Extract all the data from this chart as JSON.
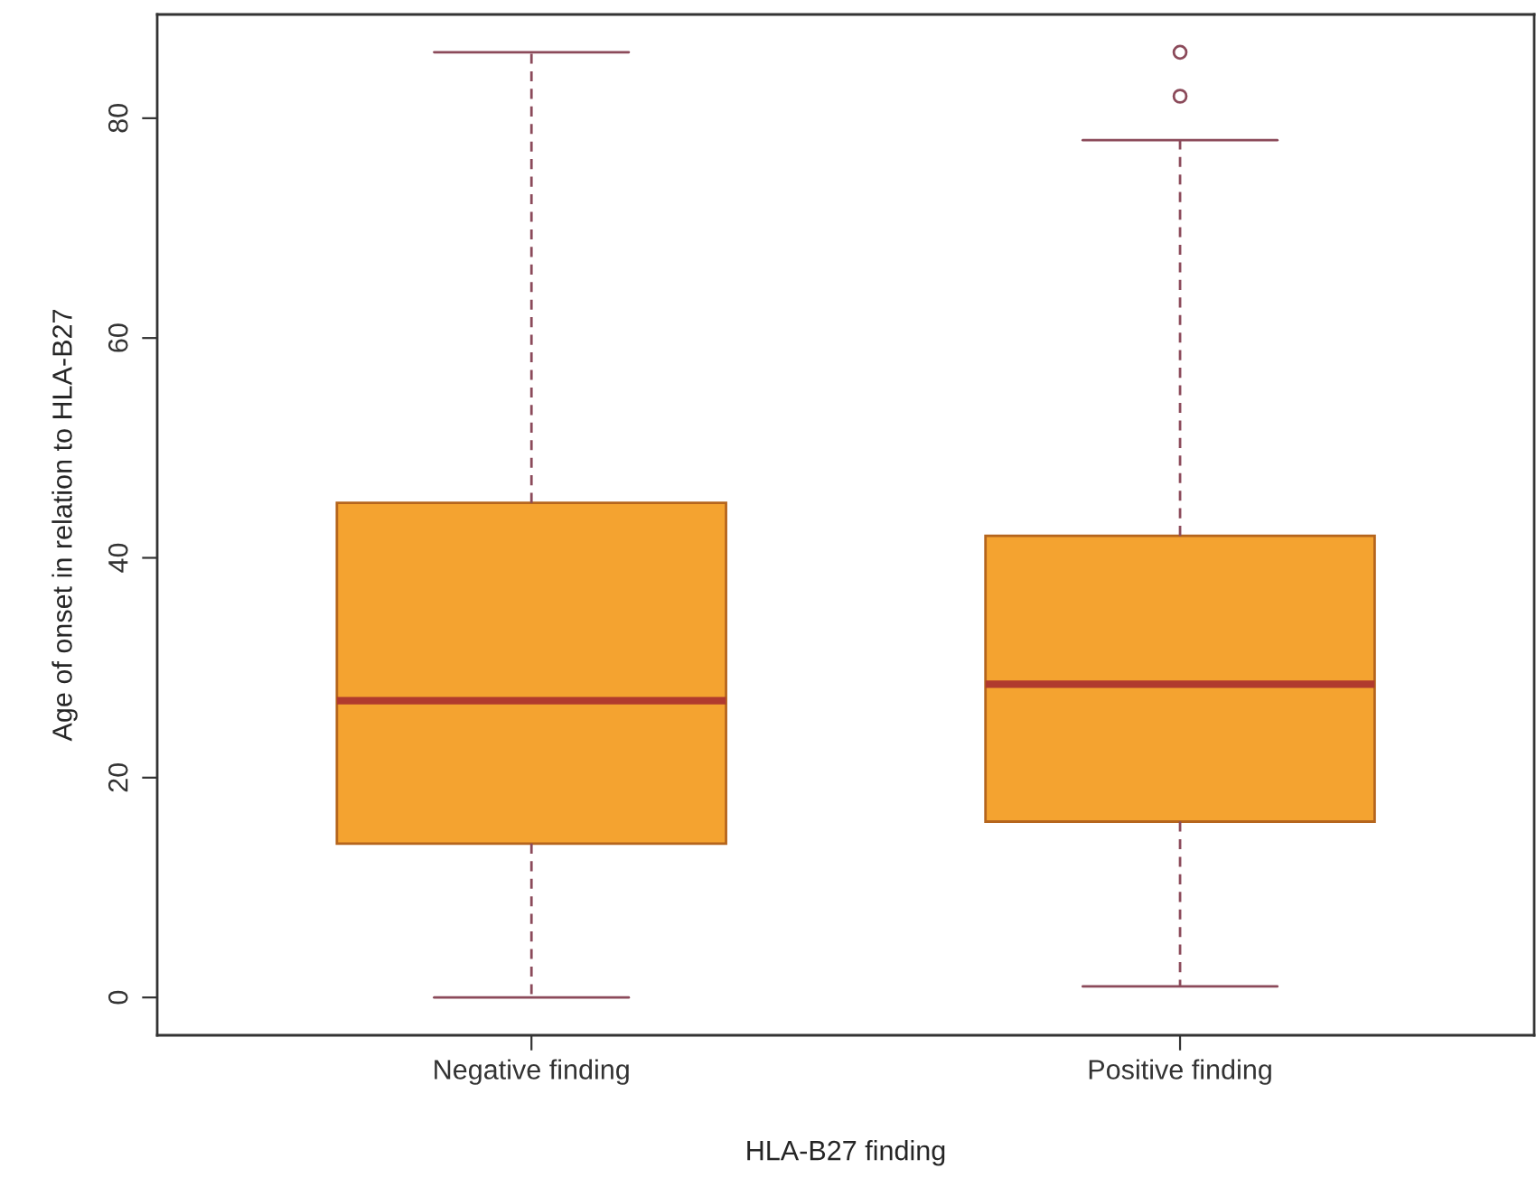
{
  "chart_data": {
    "type": "box",
    "xlabel": "HLA-B27 finding",
    "ylabel": "Age of onset in relation to HLA-B27",
    "categories": [
      "Negative finding",
      "Positive finding"
    ],
    "boxes": [
      {
        "low": 0,
        "q1": 14,
        "median": 27,
        "q3": 45,
        "high": 86
      },
      {
        "low": 1,
        "q1": 16,
        "median": 28.5,
        "q3": 42,
        "high": 78,
        "outliers": [
          82,
          86
        ]
      }
    ],
    "color": "#f4a330",
    "ylim": [
      -3.44,
      89.44
    ],
    "yticks": [
      0,
      20,
      40,
      60,
      80
    ],
    "grid": false,
    "legend": false
  }
}
